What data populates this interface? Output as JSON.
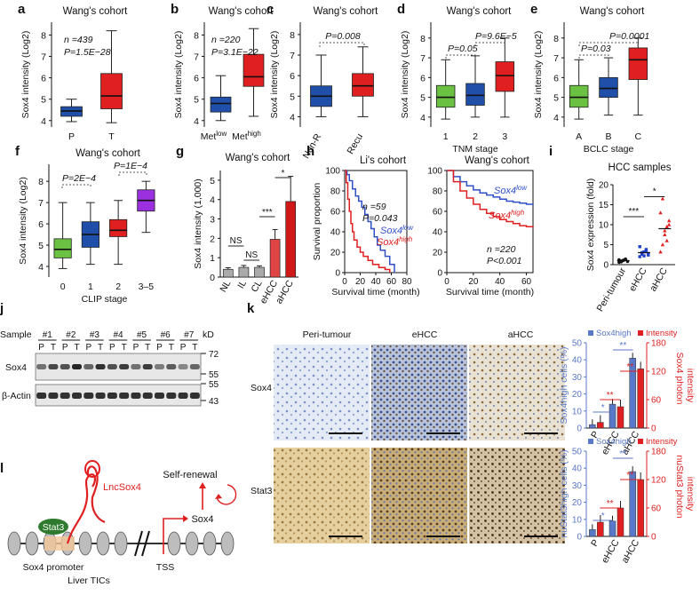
{
  "panels": {
    "a": {
      "letter": "a",
      "title": "Wang's cohort",
      "ylabel": "Sox4 intensity (Log2)",
      "yticks": [
        4,
        5,
        6,
        7,
        8
      ],
      "ylim": [
        3.7,
        8.6
      ],
      "stats": [
        "n =439",
        "P=1.5E−28"
      ],
      "categories": [
        {
          "label": "P",
          "color": "#1f4fa8",
          "box": [
            4.2,
            4.45,
            4.65
          ],
          "whisk": [
            3.95,
            5.0
          ]
        },
        {
          "label": "T",
          "color": "#e02020",
          "box": [
            4.55,
            5.15,
            6.2
          ],
          "whisk": [
            3.9,
            8.2
          ]
        }
      ]
    },
    "b": {
      "letter": "b",
      "title": "Wang's cohort",
      "ylabel": "Sox4 intensity (Log2)",
      "yticks": [
        4,
        5,
        6,
        7,
        8
      ],
      "ylim": [
        3.7,
        8.6
      ],
      "stats": [
        "n =220",
        "P=3.1E−22"
      ],
      "categories": [
        {
          "label": "Met",
          "sup": "low",
          "color": "#1f4fa8",
          "box": [
            4.4,
            4.8,
            5.1
          ],
          "whisk": [
            4.0,
            6.1
          ]
        },
        {
          "label": "Met",
          "sup": "high",
          "color": "#e02020",
          "box": [
            5.6,
            6.05,
            7.1
          ],
          "whisk": [
            4.2,
            8.3
          ]
        }
      ]
    },
    "c": {
      "letter": "c",
      "title": "Wang's cohort",
      "ylabel": "Sox4 intensity (Log2)",
      "yticks": [
        4,
        5,
        6,
        7,
        8
      ],
      "ylim": [
        3.5,
        8.6
      ],
      "stats": [
        "P=0.008"
      ],
      "categories": [
        {
          "label": "Non-R",
          "color": "#1f4fa8",
          "box": [
            4.5,
            5.0,
            5.5
          ],
          "whisk": [
            4.0,
            7.0
          ]
        },
        {
          "label": "Recu",
          "color": "#e02020",
          "box": [
            5.0,
            5.5,
            6.1
          ],
          "whisk": [
            4.0,
            7.4
          ]
        }
      ]
    },
    "d": {
      "letter": "d",
      "title": "Wang's cohort",
      "ylabel": "Sox4 intensity (Log2)",
      "xlabel": "TNM stage",
      "yticks": [
        4,
        5,
        6,
        7,
        8
      ],
      "ylim": [
        3.5,
        8.8
      ],
      "stats": [
        "P=0.05",
        "P=9.6E−5"
      ],
      "categories": [
        {
          "label": "1",
          "color": "#6ac142",
          "box": [
            4.5,
            5.0,
            5.6
          ],
          "whisk": [
            3.9,
            6.9
          ]
        },
        {
          "label": "2",
          "color": "#1f4fa8",
          "box": [
            4.6,
            5.1,
            5.7
          ],
          "whisk": [
            4.0,
            7.1
          ]
        },
        {
          "label": "3",
          "color": "#e02020",
          "box": [
            5.3,
            6.1,
            6.8
          ],
          "whisk": [
            4.0,
            8.0
          ]
        }
      ]
    },
    "e": {
      "letter": "e",
      "title": "Wang's cohort",
      "ylabel": "Sox4 intensity (Log2)",
      "xlabel": "BCLC stage",
      "yticks": [
        4,
        5,
        6,
        7,
        8
      ],
      "ylim": [
        3.5,
        8.8
      ],
      "stats": [
        "P=0.03",
        "P=0.0001"
      ],
      "categories": [
        {
          "label": "A",
          "color": "#6ac142",
          "box": [
            4.5,
            5.0,
            5.6
          ],
          "whisk": [
            3.9,
            6.9
          ]
        },
        {
          "label": "B",
          "color": "#1f4fa8",
          "box": [
            5.0,
            5.45,
            6.0
          ],
          "whisk": [
            4.1,
            7.0
          ]
        },
        {
          "label": "C",
          "color": "#e02020",
          "box": [
            5.9,
            6.9,
            7.5
          ],
          "whisk": [
            4.1,
            8.0
          ]
        }
      ]
    },
    "f": {
      "letter": "f",
      "title": "Wang's cohort",
      "ylabel": "Sox4 intensity (Log2)",
      "xlabel": "CLIP stage",
      "yticks": [
        4,
        5,
        6,
        7,
        8
      ],
      "ylim": [
        3.5,
        8.8
      ],
      "stats": [
        "P=2E−4",
        "P=1E−4"
      ],
      "categories": [
        {
          "label": "0",
          "color": "#6ac142",
          "box": [
            4.4,
            4.8,
            5.3
          ],
          "whisk": [
            3.9,
            7.0
          ]
        },
        {
          "label": "1",
          "color": "#1f4fa8",
          "box": [
            4.9,
            5.5,
            6.1
          ],
          "whisk": [
            4.1,
            7.0
          ]
        },
        {
          "label": "2",
          "color": "#e02020",
          "box": [
            5.4,
            5.7,
            6.2
          ],
          "whisk": [
            4.1,
            7.1
          ]
        },
        {
          "label": "3–5",
          "color": "#9b30e0",
          "box": [
            6.6,
            7.1,
            7.6
          ],
          "whisk": [
            5.6,
            8.0
          ]
        }
      ]
    },
    "g": {
      "letter": "g",
      "title": "Wang's cohort",
      "ylabel": "Sox4 intensity (1,000)",
      "yticks": [
        0,
        1,
        2,
        3,
        4,
        5
      ],
      "ylim": [
        0,
        5.5
      ],
      "categories": [
        "NL",
        "IL",
        "CL",
        "eHCC",
        "aHCC"
      ],
      "values": [
        0.4,
        0.5,
        0.5,
        1.95,
        3.9
      ],
      "errors": [
        0.08,
        0.1,
        0.08,
        0.5,
        1.3
      ],
      "colors": [
        "#aaaaaa",
        "#aaaaaa",
        "#aaaaaa",
        "#e04545",
        "#d01818"
      ],
      "annotations": [
        "NS",
        "NS",
        "***",
        "*"
      ]
    },
    "h": {
      "letter": "h",
      "left": {
        "title": "Li's cohort",
        "ylabel": "Survival proportion",
        "xlabel": "Survival time (month)",
        "xticks": [
          0,
          20,
          40,
          60,
          80
        ],
        "yticks": [
          0,
          20,
          40,
          60,
          80,
          100
        ],
        "stats": [
          "n =59",
          "P=0.043"
        ],
        "series": [
          {
            "name": "Sox4",
            "sup": "low",
            "color": "#3050c8",
            "x": [
              0,
              3,
              6,
              10,
              14,
              18,
              22,
              26,
              30,
              34,
              38,
              42,
              46,
              52,
              58,
              64
            ],
            "y": [
              100,
              96,
              90,
              82,
              75,
              70,
              64,
              57,
              50,
              43,
              35,
              27,
              22,
              16,
              8,
              0
            ]
          },
          {
            "name": "Sox4",
            "sup": "high",
            "color": "#e02020",
            "x": [
              0,
              2,
              4,
              6,
              8,
              10,
              12,
              16,
              20,
              24,
              30,
              36,
              44,
              52,
              58
            ],
            "y": [
              100,
              88,
              72,
              60,
              48,
              40,
              32,
              25,
              20,
              16,
              12,
              8,
              5,
              3,
              0
            ]
          }
        ]
      },
      "right": {
        "title": "Wang's cohort",
        "xlabel": "Survival time (month)",
        "xticks": [
          0,
          20,
          40,
          60
        ],
        "yticks": [
          0,
          20,
          40,
          60,
          80,
          100
        ],
        "stats": [
          "n =220",
          "P<0.001"
        ],
        "series": [
          {
            "name": "Sox4",
            "sup": "low",
            "color": "#3050c8",
            "x": [
              0,
              5,
              10,
              15,
              20,
              25,
              30,
              35,
              40,
              45,
              50,
              55,
              60,
              65
            ],
            "y": [
              100,
              94,
              89,
              85,
              81,
              78,
              76,
              74,
              72,
              70,
              69,
              68,
              67,
              66
            ]
          },
          {
            "name": "Sox4",
            "sup": "high",
            "color": "#e02020",
            "x": [
              0,
              5,
              10,
              15,
              20,
              25,
              30,
              35,
              40,
              45,
              50,
              55,
              60,
              65
            ],
            "y": [
              100,
              89,
              80,
              73,
              67,
              62,
              58,
              55,
              52,
              50,
              48,
              46,
              45,
              44
            ]
          }
        ]
      }
    },
    "i": {
      "letter": "i",
      "title": "HCC samples",
      "ylabel": "Sox4 expression (fold)",
      "yticks": [
        0,
        5,
        10,
        15,
        20
      ],
      "ylim": [
        0,
        20
      ],
      "categories": [
        "Peri-tumour",
        "eHCC",
        "aHCC"
      ],
      "means": [
        1.0,
        3.0,
        9.0
      ],
      "points": [
        [
          0.6,
          0.9,
          1.1,
          1.3,
          0.8,
          1.2,
          0.7,
          1.0,
          1.4
        ],
        [
          2.0,
          2.6,
          3.2,
          3.8,
          2.4,
          4.5,
          3.0,
          2.2,
          3.5,
          2.8
        ],
        [
          3.2,
          5.0,
          7.5,
          9.5,
          11.0,
          13.0,
          16.5,
          8.5,
          6.0,
          10.0
        ]
      ],
      "colors": [
        "#111111",
        "#2040c8",
        "#e02020"
      ],
      "annotations": [
        "***",
        "*"
      ]
    },
    "j": {
      "letter": "j",
      "sample_label": "Sample",
      "samples": [
        "#1",
        "#2",
        "#3",
        "#4",
        "#5",
        "#6",
        "#7"
      ],
      "pt": [
        "P",
        "T"
      ],
      "kd_label": "kD",
      "bands": [
        "Sox4",
        "β-Actin"
      ],
      "mw": [
        "72",
        "55",
        "55",
        "43"
      ]
    },
    "k": {
      "letter": "k",
      "columns": [
        "Peri-tumour",
        "eHCC",
        "aHCC"
      ],
      "rows": [
        "Sox4",
        "Stat3"
      ],
      "bar1": {
        "legend": [
          "Sox4high",
          "Intensity"
        ],
        "ylabel_left": "Sox4high cells (%)",
        "ylabel_right": "Sox4 photon intensity",
        "yticks_left": [
          0,
          10,
          20,
          30,
          40,
          50
        ],
        "yticks_right": [
          0,
          60,
          120,
          180
        ],
        "categories": [
          "P",
          "eHCC",
          "aHCC"
        ],
        "left": [
          2,
          14,
          41
        ],
        "right": [
          12,
          45,
          125
        ],
        "colors": [
          "#5878c8",
          "#e02020"
        ],
        "annotations": [
          "**",
          "*",
          "**",
          "**"
        ]
      },
      "bar2": {
        "legend": [
          "Sox4high",
          "Intensity"
        ],
        "ylabel_left": "nuStat3high cells (%)",
        "ylabel_right": "nuStat3 photon intensity",
        "yticks_left": [
          0,
          10,
          20,
          30,
          40,
          50
        ],
        "yticks_right": [
          0,
          60,
          120,
          180
        ],
        "categories": [
          "P",
          "eHCC",
          "aHCC"
        ],
        "left": [
          4,
          9,
          38
        ],
        "right": [
          30,
          60,
          120
        ],
        "colors": [
          "#5878c8",
          "#e02020"
        ],
        "annotations": [
          "**",
          "*",
          "**",
          "**"
        ]
      }
    },
    "l": {
      "letter": "l",
      "labels": [
        "LncSox4",
        "Stat3",
        "Self-renewal",
        "Sox4",
        "Sox4 promoter",
        "TSS",
        "Liver TICs"
      ]
    }
  }
}
